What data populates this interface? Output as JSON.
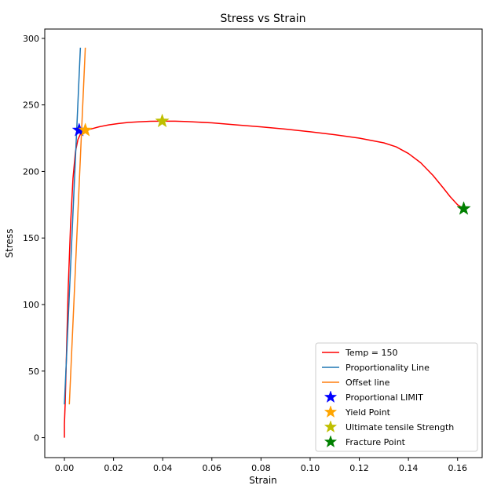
{
  "chart_data": {
    "type": "line",
    "title": "Stress vs Strain",
    "xlabel": "Strain",
    "ylabel": "Stress",
    "xlim": [
      -0.008,
      0.17
    ],
    "ylim": [
      -15,
      307
    ],
    "xticks": [
      0.0,
      0.02,
      0.04,
      0.06,
      0.08,
      0.1,
      0.12,
      0.14,
      0.16
    ],
    "xtick_labels": [
      "0.00",
      "0.02",
      "0.04",
      "0.06",
      "0.08",
      "0.10",
      "0.12",
      "0.14",
      "0.16"
    ],
    "yticks": [
      0,
      50,
      100,
      150,
      200,
      250,
      300
    ],
    "ytick_labels": [
      "0",
      "50",
      "100",
      "150",
      "200",
      "250",
      "300"
    ],
    "grid": false,
    "legend_position": "lower-right",
    "series": [
      {
        "name": "Temp = 150",
        "kind": "line",
        "color": "#ff0000",
        "x": [
          0.0,
          0.0,
          0.0003,
          0.0008,
          0.0015,
          0.0025,
          0.0035,
          0.0045,
          0.0055,
          0.0065,
          0.0075,
          0.009,
          0.011,
          0.014,
          0.018,
          0.022,
          0.026,
          0.03,
          0.035,
          0.04,
          0.045,
          0.05,
          0.06,
          0.07,
          0.08,
          0.09,
          0.1,
          0.11,
          0.12,
          0.13,
          0.135,
          0.14,
          0.145,
          0.15,
          0.154,
          0.157,
          0.16,
          0.1625
        ],
        "y": [
          0,
          10,
          25,
          60,
          110,
          160,
          195,
          215,
          224,
          228,
          230,
          231,
          232,
          233.5,
          235,
          236,
          236.8,
          237.3,
          237.7,
          237.8,
          237.8,
          237.5,
          236.5,
          235,
          233.5,
          231.8,
          229.8,
          227.6,
          225,
          221.5,
          218.5,
          213.5,
          206.5,
          197,
          188,
          181,
          175,
          172
        ]
      },
      {
        "name": "Proportionality Line",
        "kind": "line",
        "color": "#1f77b4",
        "x": [
          0.0,
          0.0065
        ],
        "y": [
          25,
          293
        ]
      },
      {
        "name": "Offset line",
        "kind": "line",
        "color": "#ff7f0e",
        "x": [
          0.002,
          0.0085
        ],
        "y": [
          25,
          293
        ]
      },
      {
        "name": "Proportional LIMIT",
        "kind": "marker",
        "color": "#0000ff",
        "x": [
          0.006
        ],
        "y": [
          231
        ]
      },
      {
        "name": "Yield Point",
        "kind": "marker",
        "color": "#ffa500",
        "x": [
          0.0085
        ],
        "y": [
          231
        ]
      },
      {
        "name": "Ultimate tensile Strength",
        "kind": "marker",
        "color": "#bfbf00",
        "x": [
          0.0398
        ],
        "y": [
          237.8
        ]
      },
      {
        "name": "Fracture Point",
        "kind": "marker",
        "color": "#008000",
        "x": [
          0.1625
        ],
        "y": [
          172
        ]
      }
    ]
  }
}
